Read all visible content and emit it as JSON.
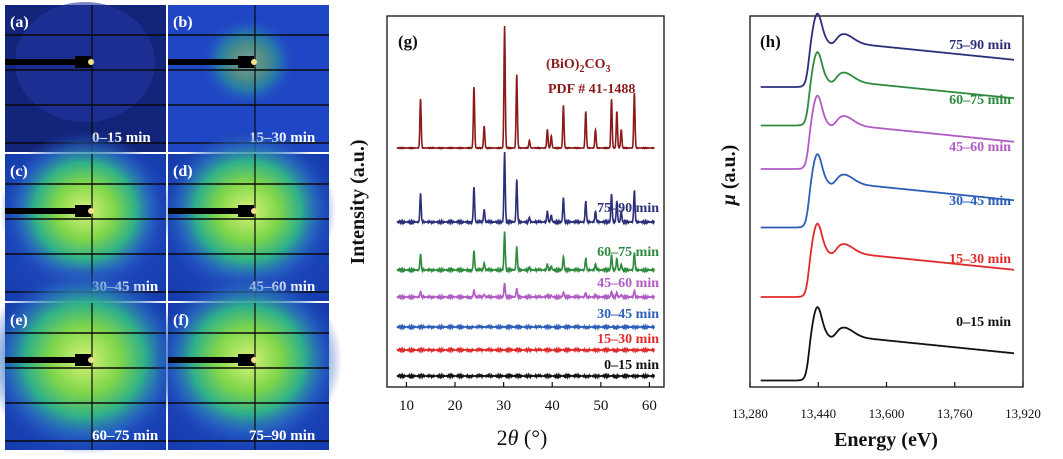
{
  "chart_data": [
    {
      "type": "image-grid",
      "panels": [
        {
          "id": "(a)",
          "time": "0–15 min",
          "halo": 0.0
        },
        {
          "id": "(b)",
          "time": "15–30 min",
          "halo": 0.15
        },
        {
          "id": "(c)",
          "time": "30–45 min",
          "halo": 0.75
        },
        {
          "id": "(d)",
          "time": "45–60 min",
          "halo": 0.8
        },
        {
          "id": "(e)",
          "time": "60–75 min",
          "halo": 1.0
        },
        {
          "id": "(f)",
          "time": "75–90 min",
          "halo": 0.9
        }
      ]
    },
    {
      "type": "line",
      "panel_label": "(g)",
      "xlabel": "2θ (°)",
      "xlabel_main": "2",
      "xlabel_var": "θ",
      "xlabel_unit": " (°)",
      "ylabel": "Intensity (a.u.)",
      "xlim": [
        6,
        63
      ],
      "xticks": [
        10,
        20,
        30,
        40,
        50,
        60
      ],
      "reference": {
        "formula": "(BiO)2CO3",
        "formula_parts": [
          "(BiO)",
          "2",
          "CO",
          "3"
        ],
        "pdf": "PDF # 41-1488",
        "color": "#8b1a1a"
      },
      "reference_peaks": [
        {
          "x": 12.9,
          "h": 0.4
        },
        {
          "x": 23.9,
          "h": 0.5
        },
        {
          "x": 26.0,
          "h": 0.18
        },
        {
          "x": 30.2,
          "h": 1.0
        },
        {
          "x": 32.7,
          "h": 0.6
        },
        {
          "x": 35.3,
          "h": 0.06
        },
        {
          "x": 39.0,
          "h": 0.15
        },
        {
          "x": 39.8,
          "h": 0.1
        },
        {
          "x": 42.3,
          "h": 0.35
        },
        {
          "x": 46.9,
          "h": 0.3
        },
        {
          "x": 48.9,
          "h": 0.15
        },
        {
          "x": 52.2,
          "h": 0.4
        },
        {
          "x": 53.3,
          "h": 0.3
        },
        {
          "x": 54.2,
          "h": 0.15
        },
        {
          "x": 56.9,
          "h": 0.45
        }
      ],
      "series": [
        {
          "name": "75–90 min",
          "color": "#2b2f7a",
          "scale": 1.0
        },
        {
          "name": "60–75 min",
          "color": "#2e8b3e",
          "scale": 0.55
        },
        {
          "name": "45–60 min",
          "color": "#b05cc4",
          "scale": 0.2
        },
        {
          "name": "30–45 min",
          "color": "#2d5fb8",
          "scale": 0.0
        },
        {
          "name": "15–30 min",
          "color": "#e02a2a",
          "scale": 0.0
        },
        {
          "name": "0–15 min",
          "color": "#111111",
          "scale": 0.0
        }
      ]
    },
    {
      "type": "line",
      "panel_label": "(h)",
      "xlabel": "Energy (eV)",
      "ylabel": "μ (a.u.)",
      "ylabel_sym": "μ",
      "ylabel_rest": " (a.u.)",
      "xlim": [
        13280,
        13920
      ],
      "xticks": [
        13280,
        13440,
        13600,
        13760,
        13920
      ],
      "xtick_labels": [
        "13,280",
        "13,440",
        "13,600",
        "13,760",
        "13,920"
      ],
      "edge_energy": 13418,
      "series": [
        {
          "name": "75–90 min",
          "color": "#2b2f7a"
        },
        {
          "name": "60–75 min",
          "color": "#2e8b3e"
        },
        {
          "name": "45–60 min",
          "color": "#b05cc4"
        },
        {
          "name": "30–45 min",
          "color": "#2d5fb8"
        },
        {
          "name": "15–30 min",
          "color": "#e02a2a"
        },
        {
          "name": "0–15 min",
          "color": "#111111"
        }
      ]
    }
  ]
}
